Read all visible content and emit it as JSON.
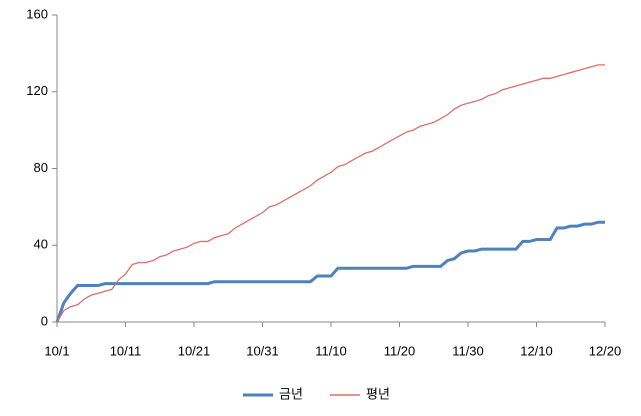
{
  "chart_data": {
    "type": "line",
    "categories": [
      "10/1",
      null,
      null,
      null,
      null,
      null,
      null,
      null,
      null,
      null,
      "10/11",
      null,
      null,
      null,
      null,
      null,
      null,
      null,
      null,
      null,
      "10/21",
      null,
      null,
      null,
      null,
      null,
      null,
      null,
      null,
      null,
      "10/31",
      null,
      null,
      null,
      null,
      null,
      null,
      null,
      null,
      null,
      "11/10",
      null,
      null,
      null,
      null,
      null,
      null,
      null,
      null,
      null,
      "11/20",
      null,
      null,
      null,
      null,
      null,
      null,
      null,
      null,
      null,
      "11/30",
      null,
      null,
      null,
      null,
      null,
      null,
      null,
      null,
      null,
      "12/10",
      null,
      null,
      null,
      null,
      null,
      null,
      null,
      null,
      null,
      "12/20"
    ],
    "series": [
      {
        "name": "금년",
        "color": "#4f81bd",
        "values": [
          0,
          10,
          15,
          19,
          19,
          19,
          19,
          20,
          20,
          20,
          20,
          20,
          20,
          20,
          20,
          20,
          20,
          20,
          20,
          20,
          20,
          20,
          20,
          21,
          21,
          21,
          21,
          21,
          21,
          21,
          21,
          21,
          21,
          21,
          21,
          21,
          21,
          21,
          24,
          24,
          24,
          28,
          28,
          28,
          28,
          28,
          28,
          28,
          28,
          28,
          28,
          28,
          29,
          29,
          29,
          29,
          29,
          32,
          33,
          36,
          37,
          37,
          38,
          38,
          38,
          38,
          38,
          38,
          42,
          42,
          43,
          43,
          43,
          49,
          49,
          50,
          50,
          51,
          51,
          52,
          52
        ]
      },
      {
        "name": "평년",
        "color": "#d9706b",
        "values": [
          0,
          6,
          8,
          9,
          12,
          14,
          15,
          16,
          17,
          22,
          25,
          30,
          31,
          31,
          32,
          34,
          35,
          37,
          38,
          39,
          41,
          42,
          42,
          44,
          45,
          46,
          49,
          51,
          53,
          55,
          57,
          60,
          61,
          63,
          65,
          67,
          69,
          71,
          74,
          76,
          78,
          81,
          82,
          84,
          86,
          88,
          89,
          91,
          93,
          95,
          97,
          99,
          100,
          102,
          103,
          104,
          106,
          108,
          111,
          113,
          114,
          115,
          116,
          118,
          119,
          121,
          122,
          123,
          124,
          125,
          126,
          127,
          127,
          128,
          129,
          130,
          131,
          132,
          133,
          134,
          134
        ]
      }
    ],
    "ylim": [
      0,
      160
    ],
    "yticks": [
      0,
      40,
      80,
      120,
      160
    ],
    "grid": false,
    "legend": "bottom"
  }
}
